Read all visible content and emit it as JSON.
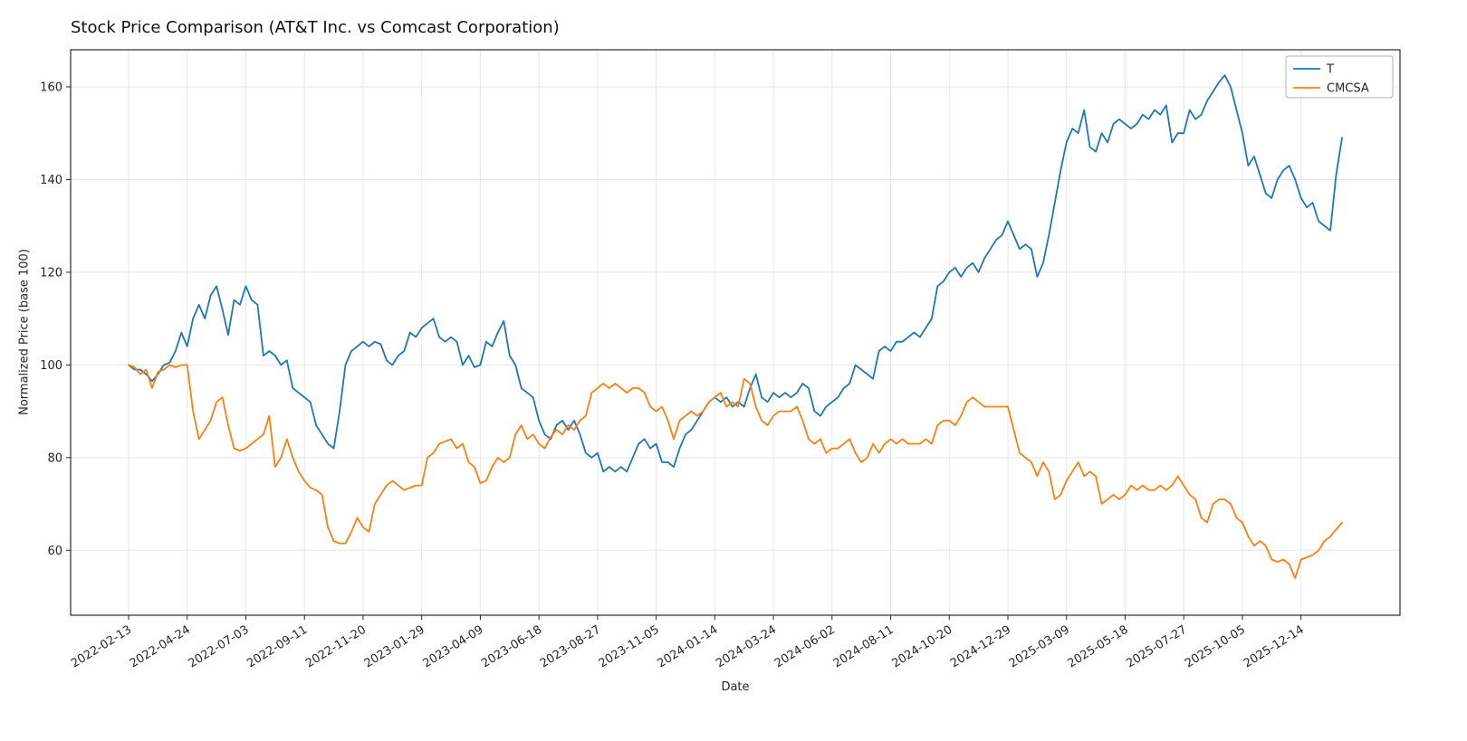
{
  "chart_data": {
    "type": "line",
    "title": "Stock Price Comparison (AT&T Inc. vs Comcast Corporation)",
    "xlabel": "Date",
    "ylabel": "Normalized Price (base 100)",
    "start_date": "2022-02-13",
    "interval": "weekly",
    "grid": true,
    "legend_position": "upper right",
    "ylim": [
      46,
      168
    ],
    "y_ticks": [
      60,
      80,
      100,
      120,
      140,
      160
    ],
    "x_tick_indices": [
      0,
      10,
      20,
      30,
      40,
      50,
      60,
      70,
      80,
      90,
      100,
      110,
      120,
      130,
      140,
      150,
      160,
      170,
      180,
      190,
      200
    ],
    "x_tick_labels": [
      "2022-02-13",
      "2022-04-24",
      "2022-07-03",
      "2022-09-11",
      "2022-11-20",
      "2023-01-29",
      "2023-04-09",
      "2023-06-18",
      "2023-08-27",
      "2023-11-05",
      "2024-01-14",
      "2024-03-24",
      "2024-06-02",
      "2024-08-11",
      "2024-10-20",
      "2024-12-29",
      "2025-03-09",
      "2025-05-18",
      "2025-07-27",
      "2025-10-05",
      "2025-12-14"
    ],
    "series": [
      {
        "name": "T",
        "color": "#1f77b4",
        "values": [
          100,
          99,
          99,
          98,
          96.5,
          98,
          100,
          100.5,
          103,
          107,
          104,
          110,
          113,
          110,
          115,
          117,
          112,
          106.5,
          114,
          113,
          117,
          114,
          113,
          102,
          103,
          102,
          100,
          101,
          95,
          94,
          93,
          92,
          87,
          85,
          83,
          82,
          90,
          100,
          103,
          104,
          105,
          104,
          105,
          104.5,
          101,
          100,
          102,
          103,
          107,
          106,
          108,
          109,
          110,
          106,
          105,
          106,
          105,
          100,
          102,
          99.5,
          100,
          105,
          104,
          107,
          109.5,
          102,
          100,
          95,
          94,
          93,
          88,
          85,
          84,
          87,
          88,
          86,
          88,
          85,
          81,
          80,
          81,
          77,
          78,
          77,
          78,
          77,
          80,
          83,
          84,
          82,
          83,
          79,
          79,
          78,
          82,
          85,
          86,
          88,
          90,
          92,
          93,
          92,
          93,
          91,
          92,
          91,
          95,
          98,
          93,
          92,
          94,
          93,
          94,
          93,
          94,
          96,
          95,
          90,
          89,
          91,
          92,
          93,
          95,
          96,
          100,
          99,
          98,
          97,
          103,
          104,
          103,
          105,
          105,
          106,
          107,
          106,
          108,
          110,
          117,
          118,
          120,
          121,
          119,
          121,
          122,
          120,
          123,
          125,
          127,
          128,
          131,
          128,
          125,
          126,
          125,
          119,
          122,
          128,
          135,
          142,
          148,
          151,
          150,
          155,
          147,
          146,
          150,
          148,
          152,
          153,
          152,
          151,
          152,
          154,
          153,
          155,
          154,
          156,
          148,
          150,
          150,
          155,
          153,
          154,
          157,
          159,
          161,
          162.5,
          160,
          155,
          150,
          143,
          145,
          141,
          137,
          136,
          140,
          142,
          143,
          140,
          136,
          134,
          135,
          131,
          130,
          129,
          141,
          149
        ]
      },
      {
        "name": "CMCSA",
        "color": "#ff7f0e",
        "values": [
          100,
          99.5,
          98,
          99,
          95,
          98.5,
          99,
          100,
          99.5,
          100,
          100,
          90,
          84,
          86,
          88,
          92,
          93,
          87,
          82,
          81.5,
          82,
          83,
          84,
          85,
          89,
          78,
          80,
          84,
          80,
          77,
          75,
          73.5,
          73,
          72,
          65,
          62,
          61.5,
          61.5,
          64,
          67,
          65,
          64,
          70,
          72,
          74,
          75,
          74,
          73,
          73.5,
          74,
          74,
          80,
          81,
          83,
          83.5,
          84,
          82,
          83,
          79,
          78,
          74.5,
          75,
          78,
          80,
          79,
          80,
          85,
          87,
          84,
          85,
          83,
          82,
          84.5,
          86,
          85,
          87,
          86,
          88,
          89,
          94,
          95,
          96,
          95,
          96,
          95,
          94,
          95,
          95,
          94,
          91,
          90,
          91,
          88,
          84,
          88,
          89,
          90,
          89,
          90,
          92,
          93,
          94,
          91,
          92,
          91,
          97,
          96,
          91,
          88,
          87,
          89,
          90,
          90,
          90,
          91,
          88,
          84,
          83,
          84,
          81,
          82,
          82,
          83,
          84,
          81,
          79,
          80,
          83,
          81,
          83,
          84,
          83,
          84,
          83,
          83,
          83,
          84,
          83,
          87,
          88,
          88,
          87,
          89,
          92,
          93,
          92,
          91,
          91,
          91,
          91,
          91,
          86,
          81,
          80,
          79,
          76,
          79,
          77,
          71,
          72,
          75,
          77,
          79,
          76,
          77,
          76,
          70,
          71,
          72,
          71,
          72,
          74,
          73,
          74,
          73,
          73,
          74,
          73,
          74,
          76,
          74,
          72,
          71,
          67,
          66,
          70,
          71,
          71,
          70,
          67,
          66,
          63,
          61,
          62,
          61,
          58,
          57.5,
          58,
          57,
          54,
          58,
          58.5,
          59,
          60,
          62,
          63,
          64.5,
          66
        ]
      }
    ]
  }
}
